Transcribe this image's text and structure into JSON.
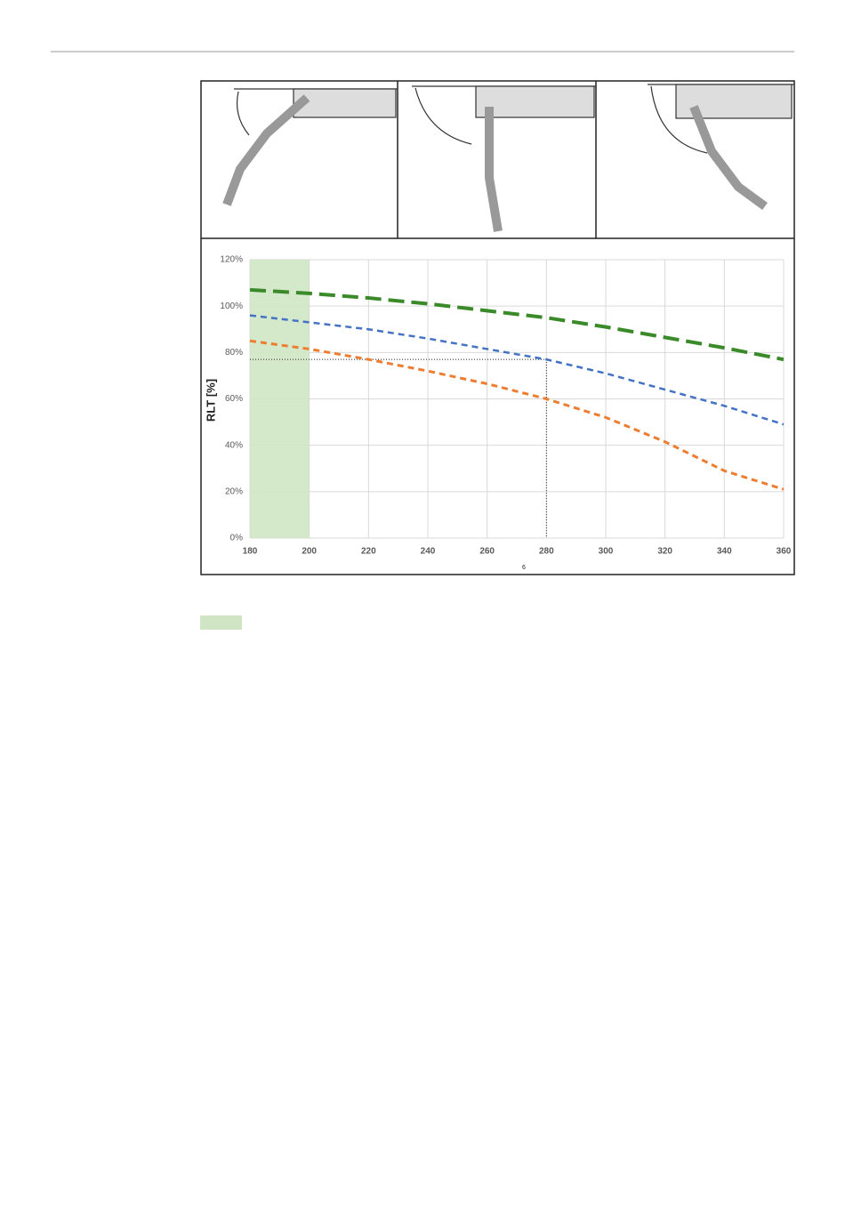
{
  "chart_data": {
    "type": "line",
    "y_label": "RLT [%]",
    "x_label": "6",
    "x": [
      180,
      200,
      220,
      240,
      260,
      280,
      300,
      320,
      340,
      360
    ],
    "series": [
      {
        "color": "#3a8a2a",
        "values": [
          107,
          105.5,
          103.5,
          101,
          98,
          95,
          91,
          86.5,
          82,
          77
        ]
      },
      {
        "color": "#4472c4",
        "values": [
          96,
          93,
          90,
          86,
          81.5,
          77,
          71,
          64,
          57,
          49
        ]
      },
      {
        "color": "#ed7d31",
        "values": [
          85,
          81.5,
          77,
          72,
          66.5,
          60,
          52,
          41.5,
          29,
          21
        ]
      }
    ],
    "xlim": [
      180,
      360
    ],
    "xticks": [
      180,
      200,
      220,
      240,
      260,
      280,
      300,
      320,
      340,
      360
    ],
    "ylim": [
      0,
      120
    ],
    "yticks": [
      {
        "value": 0,
        "label": "0%"
      },
      {
        "value": 20,
        "label": "20%"
      },
      {
        "value": 40,
        "label": "40%"
      },
      {
        "value": 60,
        "label": "60%"
      },
      {
        "value": 80,
        "label": "80%"
      },
      {
        "value": 100,
        "label": "100%"
      },
      {
        "value": 120,
        "label": "120%"
      }
    ],
    "grid": true,
    "highlight": {
      "x": [
        180,
        200
      ],
      "color": "#cfe5c4"
    },
    "reference": {
      "x": 280,
      "y": 77
    }
  }
}
